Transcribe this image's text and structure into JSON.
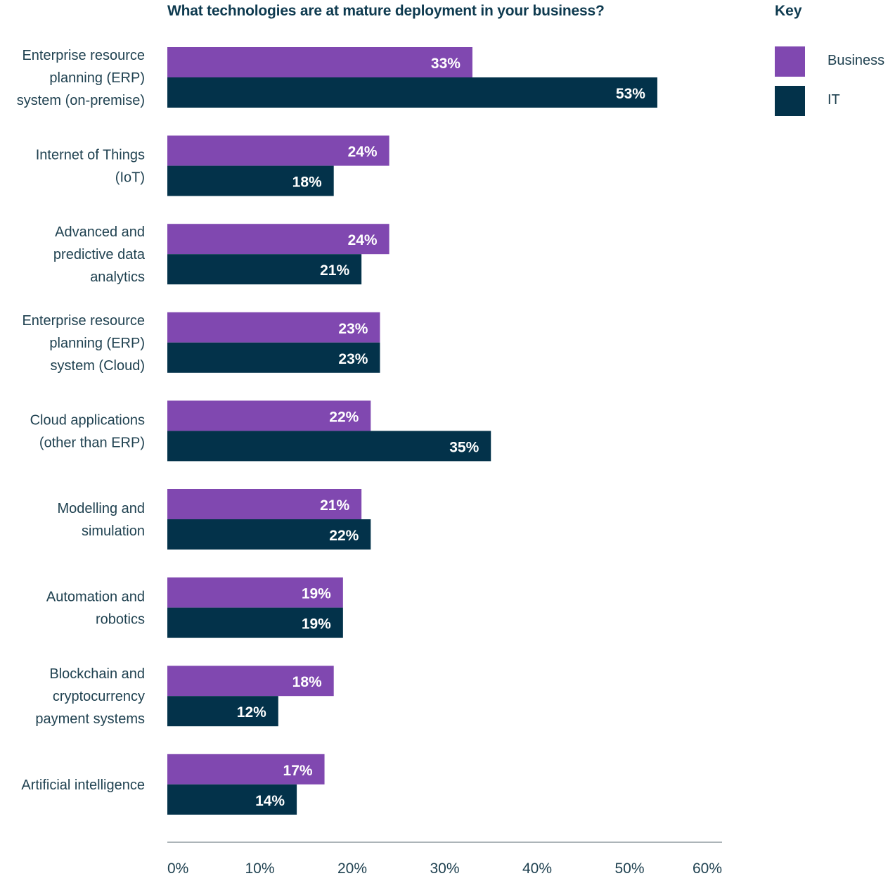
{
  "chart_data": {
    "type": "bar",
    "orientation": "horizontal",
    "title": "What technologies are at mature deployment in your business?",
    "categories": [
      "Enterprise resource planning (ERP) system (on-premise)",
      "Internet of Things (IoT)",
      "Advanced and predictive data analytics",
      "Enterprise resource planning (ERP) system (Cloud)",
      "Cloud applications (other than ERP)",
      "Modelling and simulation",
      "Automation and robotics",
      "Blockchain and cryptocurrency payment systems",
      "Artificial intelligence"
    ],
    "category_lines": [
      [
        "Enterprise resource",
        "planning (ERP)",
        "system (on-premise)"
      ],
      [
        "Internet of Things",
        "(IoT)"
      ],
      [
        "Advanced and",
        "predictive data",
        "analytics"
      ],
      [
        "Enterprise resource",
        "planning (ERP)",
        "system (Cloud)"
      ],
      [
        "Cloud applications",
        "(other than ERP)"
      ],
      [
        "Modelling and",
        "simulation"
      ],
      [
        "Automation and",
        "robotics"
      ],
      [
        "Blockchain and",
        "cryptocurrency",
        "payment systems"
      ],
      [
        "Artificial intelligence"
      ]
    ],
    "series": [
      {
        "name": "Business",
        "color": "#8048b0",
        "values": [
          33,
          24,
          24,
          23,
          22,
          21,
          19,
          18,
          17
        ]
      },
      {
        "name": "IT",
        "color": "#03324a",
        "values": [
          53,
          18,
          21,
          23,
          35,
          22,
          19,
          12,
          14
        ]
      }
    ],
    "value_suffix": "%",
    "xlim": [
      0,
      60
    ],
    "xticks": [
      "0%",
      "10%",
      "20%",
      "30%",
      "40%",
      "50%",
      "60%"
    ],
    "grid": false,
    "legend_title": "Key",
    "legend_placement": "right"
  }
}
